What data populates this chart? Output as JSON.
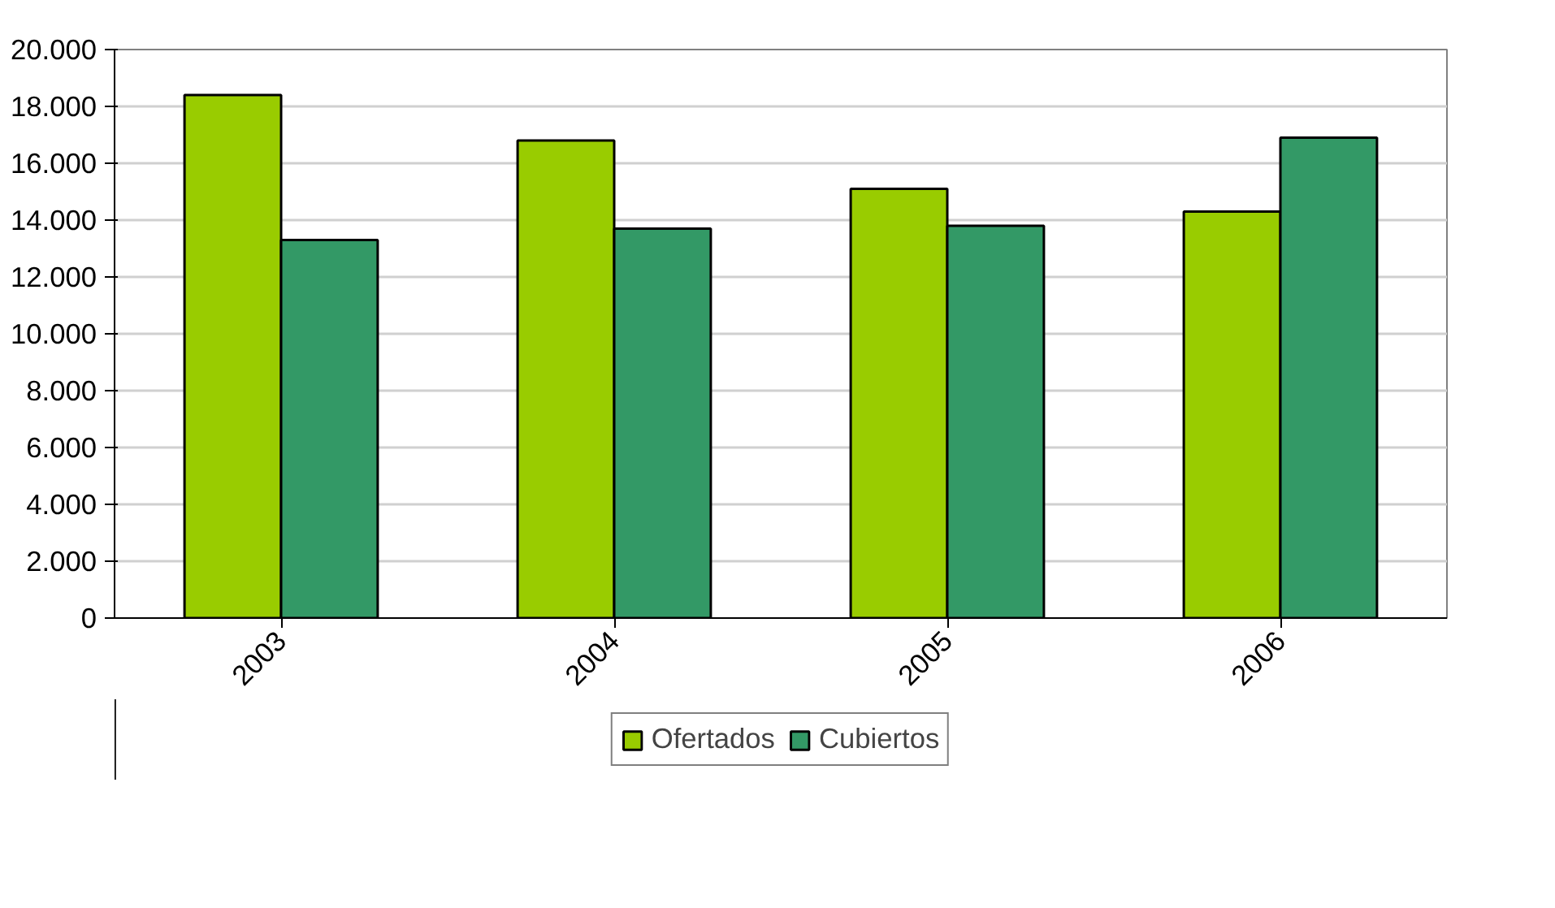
{
  "chart_data": {
    "type": "bar",
    "categories": [
      "2003",
      "2004",
      "2005",
      "2006"
    ],
    "series": [
      {
        "name": "Ofertados",
        "color": "#99cc00",
        "values": [
          18400,
          16800,
          15100,
          14300
        ]
      },
      {
        "name": "Cubiertos",
        "color": "#339966",
        "values": [
          13300,
          13700,
          13800,
          16900
        ]
      }
    ],
    "ylim": [
      0,
      20000
    ],
    "yticks": [
      {
        "value": 0,
        "label": "0"
      },
      {
        "value": 2000,
        "label": "2.000"
      },
      {
        "value": 4000,
        "label": "4.000"
      },
      {
        "value": 6000,
        "label": "6.000"
      },
      {
        "value": 8000,
        "label": "8.000"
      },
      {
        "value": 10000,
        "label": "10.000"
      },
      {
        "value": 12000,
        "label": "12.000"
      },
      {
        "value": 14000,
        "label": "14.000"
      },
      {
        "value": 16000,
        "label": "16.000"
      },
      {
        "value": 18000,
        "label": "18.000"
      },
      {
        "value": 20000,
        "label": "20.000"
      }
    ],
    "grid": "y",
    "legend": "bottom"
  }
}
